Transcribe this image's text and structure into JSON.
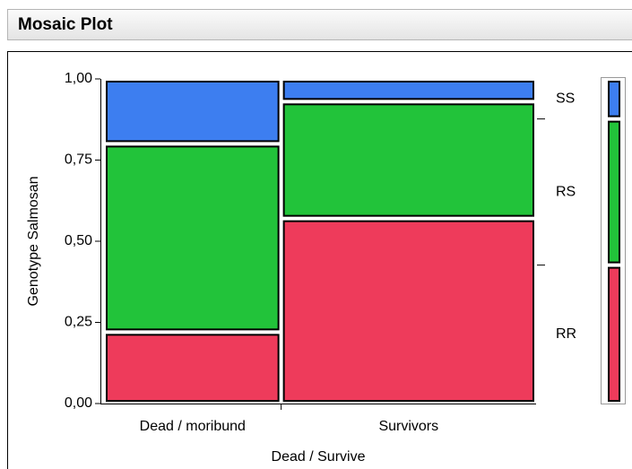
{
  "chart_data": {
    "type": "mosaic",
    "title": "Mosaic Plot",
    "x_label": "Dead / Survive",
    "y_label": "Genotype Salmosan",
    "categories": [
      "Dead / moribund",
      "Survivors"
    ],
    "x_shares": [
      0.41,
      0.59
    ],
    "series": [
      {
        "name": "RR",
        "color": "#ee3b5b",
        "values": [
          0.22,
          0.57
        ]
      },
      {
        "name": "RS",
        "color": "#22c33a",
        "values": [
          0.58,
          0.36
        ]
      },
      {
        "name": "SS",
        "color": "#3d7ef0",
        "values": [
          0.2,
          0.07
        ]
      }
    ],
    "ylim": [
      0,
      1
    ],
    "yticks": [
      {
        "value": 0,
        "label": "0,00"
      },
      {
        "value": 0.25,
        "label": "0,25"
      },
      {
        "value": 0.5,
        "label": "0,50"
      },
      {
        "value": 0.75,
        "label": "0,75"
      },
      {
        "value": 1,
        "label": "1,00"
      }
    ]
  }
}
